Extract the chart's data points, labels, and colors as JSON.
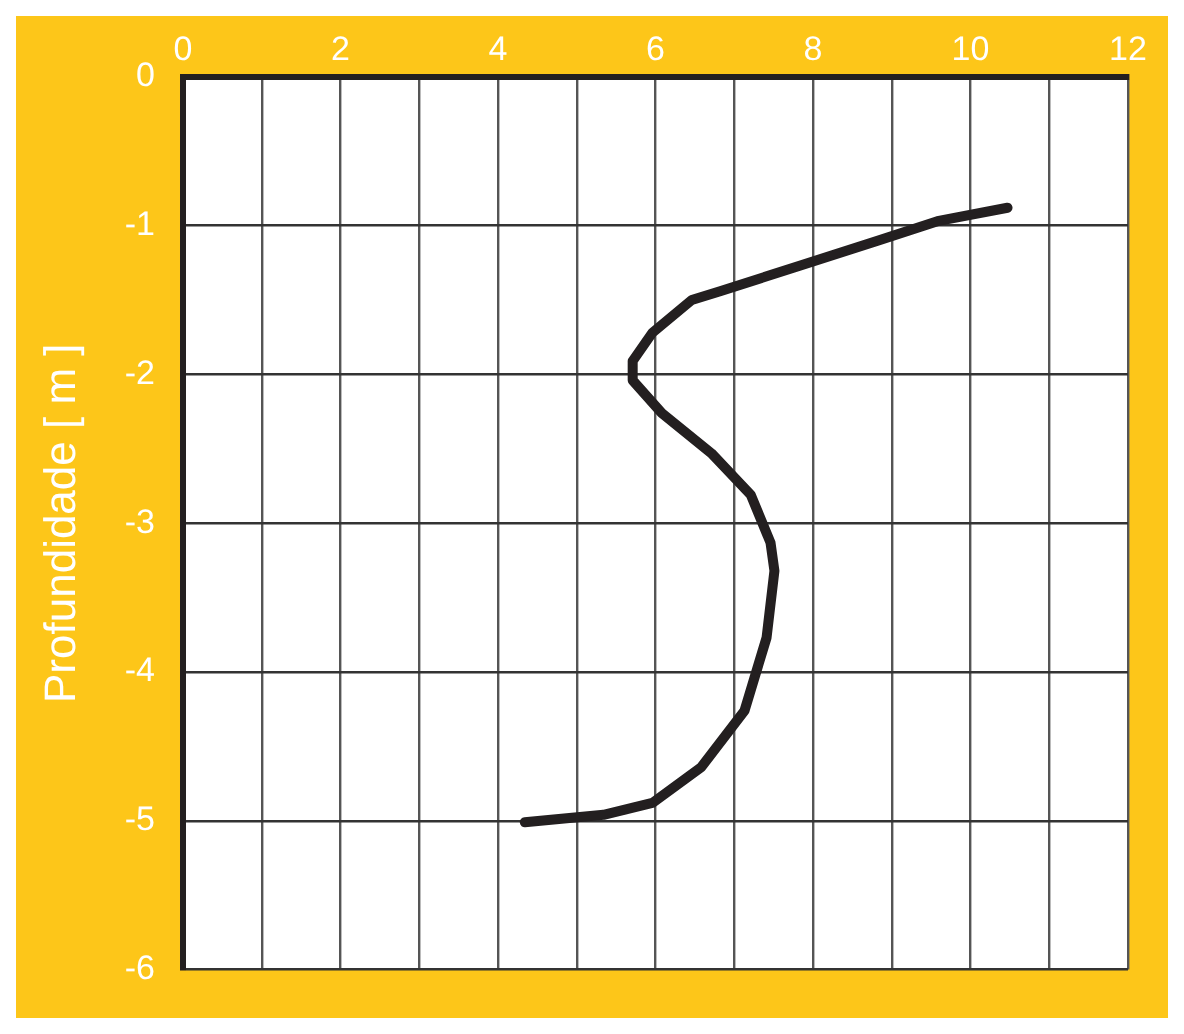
{
  "chart_data": {
    "type": "line",
    "ylabel": "Profundidade [ m ]",
    "xlim": [
      0,
      12
    ],
    "xticks": [
      0,
      {
        "value": 1,
        "label": null
      },
      2,
      {
        "value": 3,
        "label": null
      },
      4,
      {
        "value": 5,
        "label": null
      },
      6,
      {
        "value": 7,
        "label": null
      },
      8,
      {
        "value": 9,
        "label": null
      },
      10,
      {
        "value": 11,
        "label": null
      },
      12
    ],
    "ylim": [
      -6,
      0
    ],
    "yticks": [
      -6,
      -5,
      -4,
      -3,
      -2,
      -1,
      0
    ],
    "grid": true,
    "legend": false,
    "marker": "none",
    "line_style": "solid",
    "x": [
      10.47,
      9.58,
      8.83,
      7.83,
      6.83,
      6.46,
      5.96,
      5.71,
      5.71,
      6.08,
      6.71,
      7.21,
      7.46,
      7.51,
      7.41,
      7.13,
      6.58,
      5.96,
      5.34,
      4.34
    ],
    "series": [
      {
        "color": "#231f20",
        "values": [
          -0.88,
          -0.97,
          -1.1,
          -1.27,
          -1.44,
          -1.5,
          -1.72,
          -1.91,
          -2.04,
          -2.26,
          -2.53,
          -2.81,
          -3.13,
          -3.32,
          -3.77,
          -4.26,
          -4.64,
          -4.88,
          -4.96,
          -5.01
        ]
      }
    ]
  }
}
